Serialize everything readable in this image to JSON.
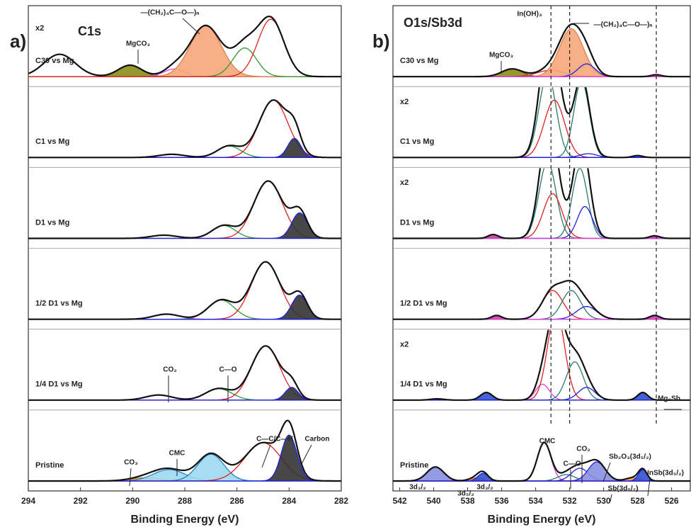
{
  "chart_data": [
    {
      "type": "line",
      "panel_label": "a)",
      "title": "C1s",
      "xlabel": "Binding Energy (eV)",
      "xlim": [
        294,
        282
      ],
      "xticks": [
        294,
        292,
        290,
        288,
        286,
        284,
        282
      ],
      "spectra": [
        {
          "name": "C30 vs Mg",
          "scale_label": "x2",
          "components": [
            {
              "center": 292.8,
              "height": 35,
              "width": 0.6,
              "color": "#555555"
            },
            {
              "center": 290.1,
              "height": 18,
              "width": 0.45,
              "color": "#6b6b00",
              "fill": "#8c8c1a"
            },
            {
              "center": 288.4,
              "height": 12,
              "width": 0.4,
              "color": "#e040e0"
            },
            {
              "center": 287.2,
              "height": 80,
              "width": 0.6,
              "color": "#e08050",
              "fill": "#f6a779"
            },
            {
              "center": 285.7,
              "height": 45,
              "width": 0.45,
              "color": "#2e9a2e"
            },
            {
              "center": 284.7,
              "height": 90,
              "width": 0.5,
              "color": "#e02020"
            }
          ]
        },
        {
          "name": "C1 vs Mg",
          "components": [
            {
              "center": 288.5,
              "height": 5,
              "width": 0.5,
              "color": "#e040e0"
            },
            {
              "center": 286.3,
              "height": 18,
              "width": 0.45,
              "color": "#2e9a2e"
            },
            {
              "center": 284.6,
              "height": 90,
              "width": 0.55,
              "color": "#e02020"
            },
            {
              "center": 283.8,
              "height": 30,
              "width": 0.25,
              "color": "#2020e0",
              "fill": "#333333"
            }
          ]
        },
        {
          "name": "D1 vs Mg",
          "components": [
            {
              "center": 288.8,
              "height": 5,
              "width": 0.5,
              "color": "#e040e0"
            },
            {
              "center": 286.5,
              "height": 20,
              "width": 0.45,
              "color": "#2e9a2e"
            },
            {
              "center": 284.8,
              "height": 90,
              "width": 0.55,
              "color": "#e02020"
            },
            {
              "center": 283.6,
              "height": 40,
              "width": 0.3,
              "color": "#2020e0",
              "fill": "#333333"
            }
          ]
        },
        {
          "name": "1/2 D1 vs Mg",
          "components": [
            {
              "center": 288.7,
              "height": 8,
              "width": 0.5,
              "color": "#e040e0"
            },
            {
              "center": 286.6,
              "height": 30,
              "width": 0.5,
              "color": "#2e9a2e"
            },
            {
              "center": 284.9,
              "height": 90,
              "width": 0.55,
              "color": "#e02020"
            },
            {
              "center": 283.6,
              "height": 38,
              "width": 0.3,
              "color": "#2020e0",
              "fill": "#333333"
            }
          ]
        },
        {
          "name": "1/4 D1 vs Mg",
          "components": [
            {
              "center": 289.0,
              "height": 8,
              "width": 0.5,
              "color": "#e040e0"
            },
            {
              "center": 286.7,
              "height": 18,
              "width": 0.5,
              "color": "#2e9a2e"
            },
            {
              "center": 284.9,
              "height": 85,
              "width": 0.55,
              "color": "#e02020"
            },
            {
              "center": 283.9,
              "height": 20,
              "width": 0.25,
              "color": "#2020e0",
              "fill": "#333333"
            }
          ]
        },
        {
          "name": "Pristine",
          "components": [
            {
              "center": 289.5,
              "height": 5,
              "width": 0.6,
              "color": "#e08020",
              "fill": "#f0a040"
            },
            {
              "center": 288.6,
              "height": 18,
              "width": 0.6,
              "color": "#2080c0",
              "fill": "#9fd8f0"
            },
            {
              "center": 287.0,
              "height": 42,
              "width": 0.5,
              "color": "#2080c0",
              "fill": "#9fd8f0"
            },
            {
              "center": 285.0,
              "height": 60,
              "width": 0.7,
              "color": "#e02020"
            },
            {
              "center": 284.0,
              "height": 72,
              "width": 0.3,
              "color": "#2020e0",
              "fill": "#333333"
            }
          ]
        }
      ],
      "annotations": [
        "MgCO₃",
        "—(CH₂)₄C—O—)ₙ",
        "CO₂",
        "C—O",
        "C—C/C—H",
        "Carbon",
        "CO₃",
        "CMC"
      ]
    },
    {
      "type": "line",
      "panel_label": "b)",
      "title": "O1s/Sb3d",
      "xlabel": "Binding Energy (eV)",
      "xlim": [
        542.4,
        524.9
      ],
      "xticks": [
        542,
        540,
        538,
        536,
        534,
        532,
        530,
        528,
        526
      ],
      "reference_lines": [
        533.1,
        532.0,
        526.9
      ],
      "spectra": [
        {
          "name": "C30 vs Mg",
          "components": [
            {
              "center": 535.4,
              "height": 12,
              "width": 0.6,
              "color": "#6b6b00",
              "fill": "#8c8c1a"
            },
            {
              "center": 533.1,
              "height": 10,
              "width": 0.8,
              "color": "#e02020"
            },
            {
              "center": 531.9,
              "height": 75,
              "width": 0.7,
              "color": "#e08050",
              "fill": "#f6a779"
            },
            {
              "center": 531.0,
              "height": 20,
              "width": 0.5,
              "color": "#2020e0"
            },
            {
              "center": 526.9,
              "height": 3,
              "width": 0.3,
              "color": "#e040e0",
              "fill": "#d04090"
            }
          ]
        },
        {
          "name": "C1 vs Mg",
          "scale_label": "x2",
          "components": [
            {
              "center": 533.3,
              "height": 130,
              "width": 0.5,
              "color": "#2a7a6a"
            },
            {
              "center": 532.9,
              "height": 90,
              "width": 0.6,
              "color": "#e02020"
            },
            {
              "center": 531.3,
              "height": 120,
              "width": 0.45,
              "color": "#2a7a6a"
            },
            {
              "center": 530.9,
              "height": 6,
              "width": 0.5,
              "color": "#2020e0"
            },
            {
              "center": 528.0,
              "height": 3,
              "width": 0.3,
              "color": "#2020e0",
              "fill": "#3050d0"
            }
          ]
        },
        {
          "name": "D1 vs Mg",
          "scale_label": "x2",
          "components": [
            {
              "center": 536.5,
              "height": 6,
              "width": 0.3,
              "color": "#e040e0",
              "fill": "#d04090"
            },
            {
              "center": 533.3,
              "height": 120,
              "width": 0.5,
              "color": "#2a7a6a"
            },
            {
              "center": 533.0,
              "height": 70,
              "width": 0.55,
              "color": "#e02020"
            },
            {
              "center": 531.4,
              "height": 110,
              "width": 0.45,
              "color": "#2a7a6a"
            },
            {
              "center": 531.1,
              "height": 50,
              "width": 0.45,
              "color": "#2020e0"
            },
            {
              "center": 527.0,
              "height": 4,
              "width": 0.3,
              "color": "#e040e0",
              "fill": "#d04090"
            }
          ]
        },
        {
          "name": "1/2 D1 vs Mg",
          "components": [
            {
              "center": 536.3,
              "height": 6,
              "width": 0.3,
              "color": "#e040e0",
              "fill": "#d04090"
            },
            {
              "center": 533.0,
              "height": 45,
              "width": 0.6,
              "color": "#e02020"
            },
            {
              "center": 531.9,
              "height": 45,
              "width": 0.55,
              "color": "#2a7a6a"
            },
            {
              "center": 531.0,
              "height": 20,
              "width": 0.6,
              "color": "#2020e0"
            },
            {
              "center": 527.0,
              "height": 6,
              "width": 0.3,
              "color": "#e040e0",
              "fill": "#d04090"
            }
          ]
        },
        {
          "name": "1/4 D1 vs Mg",
          "scale_label": "x2",
          "components": [
            {
              "center": 539.8,
              "height": 2,
              "width": 0.4,
              "color": "#2020e0"
            },
            {
              "center": 536.9,
              "height": 12,
              "width": 0.35,
              "color": "#2020e0",
              "fill": "#3050d0"
            },
            {
              "center": 533.6,
              "height": 25,
              "width": 0.4,
              "color": "#e040e0"
            },
            {
              "center": 532.8,
              "height": 140,
              "width": 0.5,
              "color": "#e02020"
            },
            {
              "center": 531.7,
              "height": 60,
              "width": 0.5,
              "color": "#2a7a6a"
            },
            {
              "center": 531.0,
              "height": 20,
              "width": 0.5,
              "color": "#2020e0"
            },
            {
              "center": 527.7,
              "height": 12,
              "width": 0.3,
              "color": "#2020e0",
              "fill": "#3050d0"
            }
          ]
        },
        {
          "name": "Pristine",
          "components": [
            {
              "center": 539.9,
              "height": 22,
              "width": 0.5,
              "color": "#5050b0",
              "fill": "#8890e0"
            },
            {
              "center": 537.5,
              "height": 5,
              "width": 0.4,
              "color": "#e08020",
              "fill": "#f0a040"
            },
            {
              "center": 537.1,
              "height": 12,
              "width": 0.3,
              "color": "#2020e0",
              "fill": "#3050d0"
            },
            {
              "center": 533.5,
              "height": 60,
              "width": 0.4,
              "color": "#e040e0"
            },
            {
              "center": 532.2,
              "height": 10,
              "width": 0.5,
              "color": "#2a7a6a"
            },
            {
              "center": 531.4,
              "height": 20,
              "width": 0.5,
              "color": "#2020e0"
            },
            {
              "center": 530.4,
              "height": 30,
              "width": 0.5,
              "color": "#2020e0",
              "fill": "#8890e0"
            },
            {
              "center": 528.3,
              "height": 5,
              "width": 0.4,
              "color": "#e08020",
              "fill": "#f0a040"
            },
            {
              "center": 527.7,
              "height": 18,
              "width": 0.25,
              "color": "#2020e0",
              "fill": "#3050d0"
            }
          ]
        }
      ],
      "annotations": [
        "In(OH)₃",
        "—(CH₂)₄C—O—)ₙ",
        "MgCO₃",
        "Mg₃Sb",
        "CMC",
        "C—O",
        "CO₂",
        "Sb₂O₃(3d₅/₂)",
        "Sb(3d₅/₂)",
        "InSb(3d₅/₂)",
        "3d₃/₂",
        "3d₅/₂",
        "3d₃/₂"
      ]
    }
  ]
}
